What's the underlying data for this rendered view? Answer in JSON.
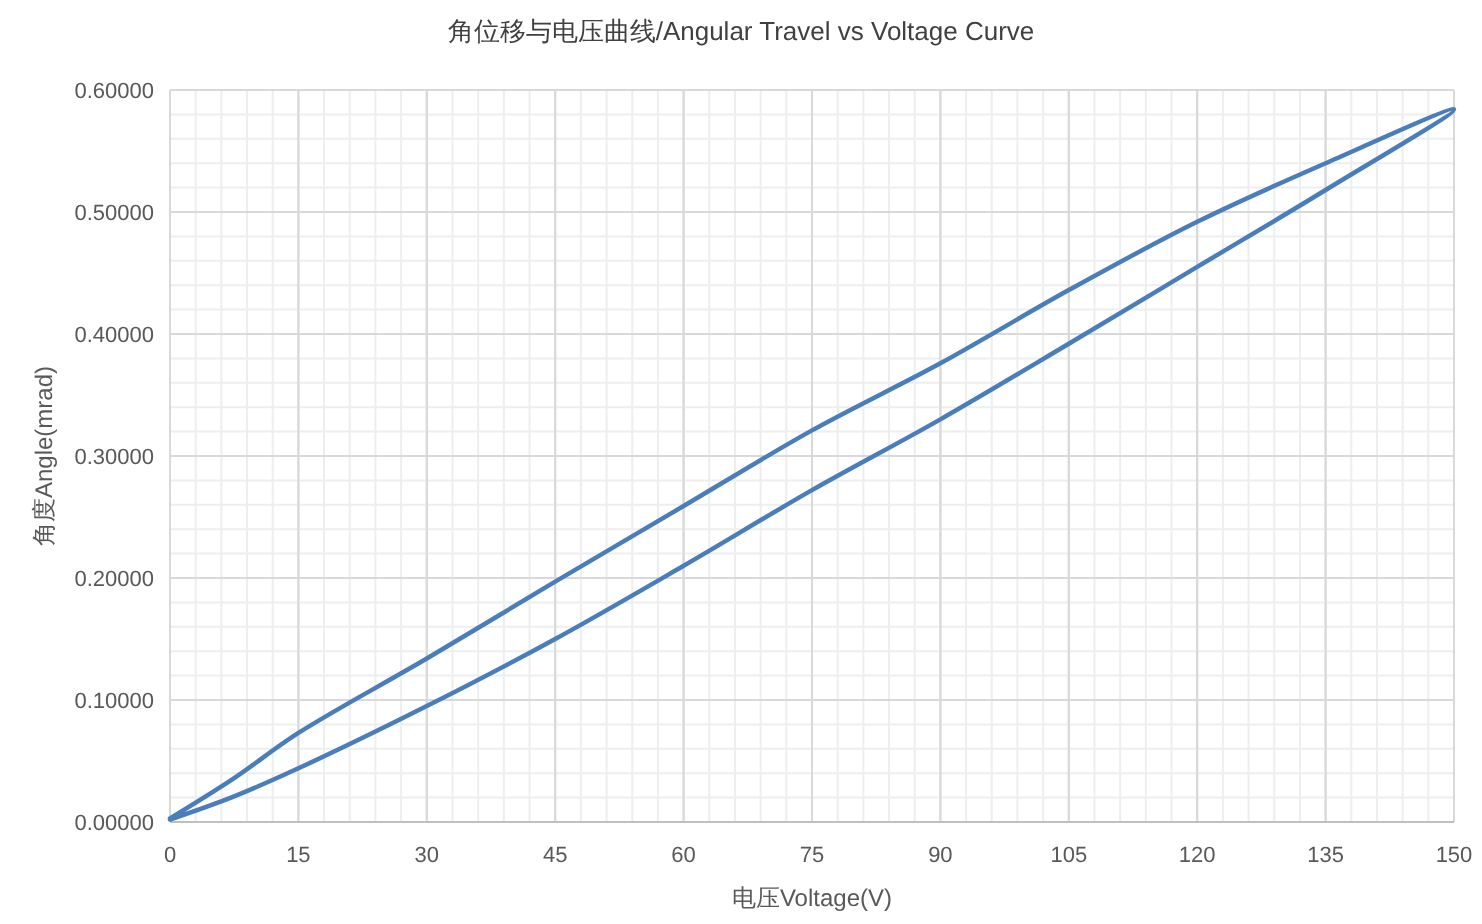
{
  "chart_data": {
    "type": "line",
    "title": "角位移与电压曲线/Angular Travel vs Voltage Curve",
    "xlabel": "电压Voltage(V)",
    "ylabel": "角度Angle(mrad)",
    "series": [
      {
        "color": "#4a7ebb",
        "x": [
          0,
          7.5,
          15,
          30,
          45,
          60,
          75,
          90,
          105,
          120,
          135,
          150,
          135,
          120,
          105,
          90,
          75,
          60,
          45,
          30,
          15,
          7.5,
          0
        ],
        "values": [
          0.002,
          0.021,
          0.044,
          0.095,
          0.15,
          0.21,
          0.272,
          0.33,
          0.392,
          0.455,
          0.518,
          0.584,
          0.54,
          0.492,
          0.436,
          0.376,
          0.321,
          0.259,
          0.197,
          0.134,
          0.073,
          0.036,
          0.003
        ]
      }
    ],
    "xlim": [
      0,
      150
    ],
    "ylim": [
      0,
      0.6
    ],
    "xticks": [
      0,
      {
        "value": 3,
        "label": null
      },
      {
        "value": 6,
        "label": null
      },
      {
        "value": 9,
        "label": null
      },
      {
        "value": 12,
        "label": null
      },
      15,
      {
        "value": 18,
        "label": null
      },
      {
        "value": 21,
        "label": null
      },
      {
        "value": 24,
        "label": null
      },
      {
        "value": 27,
        "label": null
      },
      30,
      {
        "value": 33,
        "label": null
      },
      {
        "value": 36,
        "label": null
      },
      {
        "value": 39,
        "label": null
      },
      {
        "value": 42,
        "label": null
      },
      45,
      {
        "value": 48,
        "label": null
      },
      {
        "value": 51,
        "label": null
      },
      {
        "value": 54,
        "label": null
      },
      {
        "value": 57,
        "label": null
      },
      60,
      {
        "value": 63,
        "label": null
      },
      {
        "value": 66,
        "label": null
      },
      {
        "value": 69,
        "label": null
      },
      {
        "value": 72,
        "label": null
      },
      75,
      {
        "value": 78,
        "label": null
      },
      {
        "value": 81,
        "label": null
      },
      {
        "value": 84,
        "label": null
      },
      {
        "value": 87,
        "label": null
      },
      90,
      {
        "value": 93,
        "label": null
      },
      {
        "value": 96,
        "label": null
      },
      {
        "value": 99,
        "label": null
      },
      {
        "value": 102,
        "label": null
      },
      105,
      {
        "value": 108,
        "label": null
      },
      {
        "value": 111,
        "label": null
      },
      {
        "value": 114,
        "label": null
      },
      {
        "value": 117,
        "label": null
      },
      120,
      {
        "value": 123,
        "label": null
      },
      {
        "value": 126,
        "label": null
      },
      {
        "value": 129,
        "label": null
      },
      {
        "value": 132,
        "label": null
      },
      135,
      {
        "value": 138,
        "label": null
      },
      {
        "value": 141,
        "label": null
      },
      {
        "value": 144,
        "label": null
      },
      {
        "value": 147,
        "label": null
      },
      150
    ],
    "yticks": [
      {
        "value": 0,
        "label": "0.00000"
      },
      {
        "value": 0.02,
        "label": null
      },
      {
        "value": 0.04,
        "label": null
      },
      {
        "value": 0.06,
        "label": null
      },
      {
        "value": 0.08,
        "label": null
      },
      {
        "value": 0.1,
        "label": "0.10000"
      },
      {
        "value": 0.12,
        "label": null
      },
      {
        "value": 0.14,
        "label": null
      },
      {
        "value": 0.16,
        "label": null
      },
      {
        "value": 0.18,
        "label": null
      },
      {
        "value": 0.2,
        "label": "0.20000"
      },
      {
        "value": 0.22,
        "label": null
      },
      {
        "value": 0.24,
        "label": null
      },
      {
        "value": 0.26,
        "label": null
      },
      {
        "value": 0.28,
        "label": null
      },
      {
        "value": 0.3,
        "label": "0.30000"
      },
      {
        "value": 0.32,
        "label": null
      },
      {
        "value": 0.34,
        "label": null
      },
      {
        "value": 0.36,
        "label": null
      },
      {
        "value": 0.38,
        "label": null
      },
      {
        "value": 0.4,
        "label": "0.40000"
      },
      {
        "value": 0.42,
        "label": null
      },
      {
        "value": 0.44,
        "label": null
      },
      {
        "value": 0.46,
        "label": null
      },
      {
        "value": 0.48,
        "label": null
      },
      {
        "value": 0.5,
        "label": "0.50000"
      },
      {
        "value": 0.52,
        "label": null
      },
      {
        "value": 0.54,
        "label": null
      },
      {
        "value": 0.56,
        "label": null
      },
      {
        "value": 0.58,
        "label": null
      },
      {
        "value": 0.6,
        "label": "0.60000"
      }
    ],
    "grid": true,
    "line_style": "solid"
  }
}
